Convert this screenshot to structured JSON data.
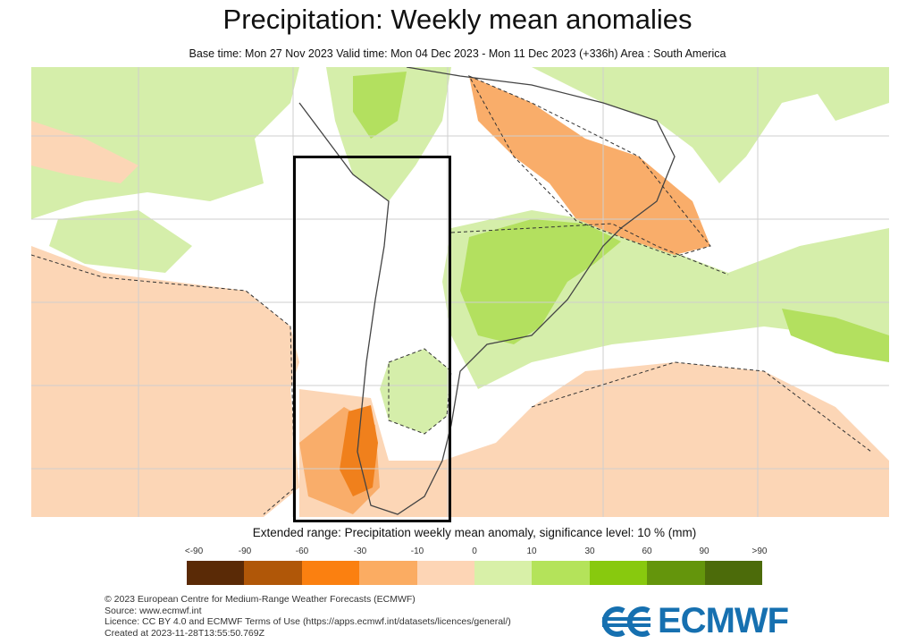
{
  "title": "Precipitation: Weekly mean anomalies",
  "subtitle": "Base time: Mon 27 Nov 2023 Valid time: Mon 04 Dec 2023 - Mon 11 Dec 2023 (+336h) Area : South America",
  "map": {
    "area": "South America",
    "highlight_box": "Chile / Argentina longitude band",
    "colors": {
      "light_green": "#d5eeaa",
      "green": "#b3e05f",
      "light_orange": "#fcd6b6",
      "orange": "#f9ad6a",
      "dark_orange": "#f0801c",
      "brown": "#a8520c"
    }
  },
  "legend": {
    "title": "Extended range: Precipitation weekly mean anomaly, significance level: 10 % (mm)",
    "ticks": [
      "<-90",
      "-90",
      "-60",
      "-30",
      "-10",
      "0",
      "10",
      "30",
      "60",
      "90",
      ">90"
    ],
    "colors": [
      "#5a2a06",
      "#b05708",
      "#fb8010",
      "#fbac62",
      "#fdd5b5",
      "#d8f0a8",
      "#b4e35a",
      "#88c90e",
      "#64950c",
      "#4c6b0a"
    ]
  },
  "footer": {
    "lines": [
      "© 2023 European Centre for Medium-Range Weather Forecasts (ECMWF)",
      "Source: www.ecmwf.int",
      "Licence: CC BY 4.0 and ECMWF Terms of Use (https://apps.ecmwf.int/datasets/licences/general/)",
      "Created at 2023-11-28T13:55:50.769Z"
    ]
  },
  "logo": {
    "text": "ECMWF",
    "color": "#1670b0"
  }
}
